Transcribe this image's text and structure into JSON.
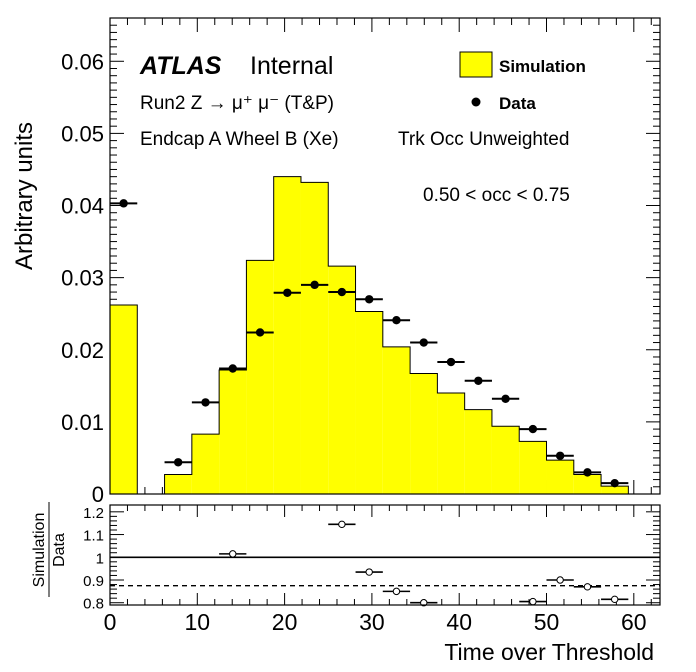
{
  "chart_data": {
    "type": "bar",
    "x_label": "Time over Threshold",
    "y_label": "Arbitrary units",
    "ratio_label_top": "Simulation",
    "ratio_label_bottom": "Data",
    "x_range": [
      0,
      63
    ],
    "y_range": [
      0,
      0.066
    ],
    "ratio_range": [
      0.79,
      1.23
    ],
    "x_ticks": [
      "0",
      "10",
      "20",
      "30",
      "40",
      "50",
      "60"
    ],
    "y_ticks": [
      "0",
      "0.01",
      "0.02",
      "0.03",
      "0.04",
      "0.05",
      "0.06"
    ],
    "ratio_ticks": [
      "0.8",
      "0.9",
      "1",
      "1.1",
      "1.2"
    ],
    "ratio_reference_line": 1.0,
    "ratio_dashed_line": 0.875,
    "annotations": {
      "atlas": "ATLAS",
      "internal": "Internal",
      "run": "Run2 Z → μ⁺ μ⁻ (T&P)",
      "region": "Endcap A Wheel B (Xe)",
      "weighting": "Trk Occ Unweighted",
      "cut": "0.50 < occ < 0.75"
    },
    "legend": {
      "placement": "top-right",
      "simulation_label": "Simulation",
      "data_label": "Data"
    },
    "colors": {
      "simulation_fill": "#ffff00",
      "markers": "#000000"
    },
    "bin_edges": [
      0,
      3.125,
      6.25,
      9.375,
      12.5,
      15.625,
      18.75,
      21.875,
      25,
      28.125,
      31.25,
      34.375,
      37.5,
      40.625,
      43.75,
      46.875,
      50,
      53.125,
      56.25,
      59.375
    ],
    "series": [
      {
        "name": "Simulation",
        "values": [
          0.0262,
          0,
          0.0027,
          0.0083,
          0.0172,
          0.0324,
          0.044,
          0.0432,
          0.0316,
          0.0253,
          0.0204,
          0.0167,
          0.014,
          0.0117,
          0.0094,
          0.0073,
          0.0047,
          0.0027,
          0.0011
        ]
      },
      {
        "name": "Data",
        "x": [
          1.56,
          7.81,
          10.94,
          14.06,
          17.19,
          20.31,
          23.44,
          26.56,
          29.69,
          32.81,
          35.94,
          39.06,
          42.19,
          45.31,
          48.44,
          51.56,
          54.69,
          57.81
        ],
        "values": [
          0.0403,
          0.0044,
          0.0127,
          0.0174,
          0.0224,
          0.0279,
          0.029,
          0.028,
          0.027,
          0.0241,
          0.021,
          0.0183,
          0.0157,
          0.0132,
          0.009,
          0.0053,
          0.003,
          0.0015
        ]
      }
    ],
    "ratio": {
      "x": [
        14.06,
        26.56,
        29.69,
        32.81,
        35.94,
        48.44,
        51.56,
        54.69,
        57.81
      ],
      "values": [
        1.015,
        1.145,
        0.935,
        0.85,
        0.8,
        0.805,
        0.9,
        0.87,
        0.815
      ]
    }
  }
}
